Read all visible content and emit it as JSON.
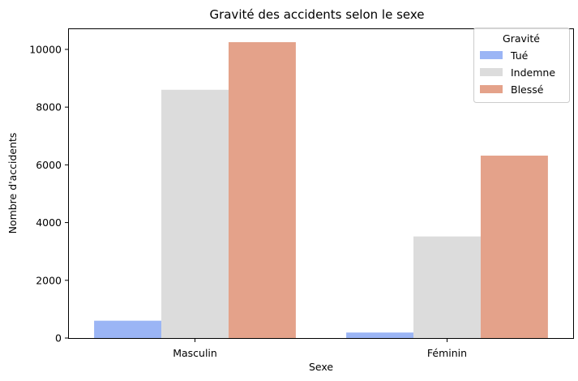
{
  "chart_data": {
    "type": "bar",
    "title": "Gravité des accidents selon le sexe",
    "xlabel": "Sexe",
    "ylabel": "Nombre d'accidents",
    "categories": [
      "Masculin",
      "Féminin"
    ],
    "series": [
      {
        "name": "Tué",
        "values": [
          600,
          190
        ],
        "color": "#9bb5f5"
      },
      {
        "name": "Indemne",
        "values": [
          8600,
          3520
        ],
        "color": "#dcdcdc"
      },
      {
        "name": "Blessé",
        "values": [
          10250,
          6320
        ],
        "color": "#e4a28a"
      }
    ],
    "ylim": [
      0,
      10700
    ],
    "yticks": [
      0,
      2000,
      4000,
      6000,
      8000,
      10000
    ],
    "legend": {
      "title": "Gravité",
      "placement": "top-right"
    },
    "grid": false
  }
}
